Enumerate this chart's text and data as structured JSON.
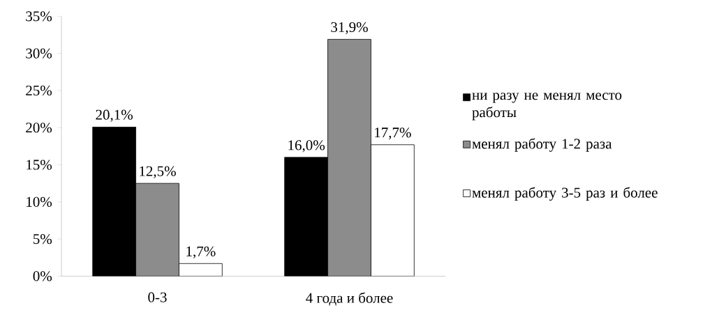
{
  "chart_data": {
    "type": "bar",
    "categories": [
      "0-3",
      "4 года и более"
    ],
    "series": [
      {
        "name": "ни разу не менял место работы",
        "color": "#000000",
        "values": [
          20.1,
          16.0
        ],
        "value_labels": [
          "20,1%",
          "16,0%"
        ]
      },
      {
        "name": "менял работу 1-2 раза",
        "color": "#8c8c8c",
        "values": [
          12.5,
          31.9
        ],
        "value_labels": [
          "12,5%",
          "31,9%"
        ]
      },
      {
        "name": "менял работу 3-5 раз и более",
        "color": "#ffffff",
        "values": [
          1.7,
          17.7
        ],
        "value_labels": [
          "1,7%",
          "17,7%"
        ]
      }
    ],
    "ylim": [
      0,
      35
    ],
    "yticks": [
      {
        "value": 0,
        "label": "0%"
      },
      {
        "value": 5,
        "label": "5%"
      },
      {
        "value": 10,
        "label": "10%"
      },
      {
        "value": 15,
        "label": "15%"
      },
      {
        "value": 20,
        "label": "20%"
      },
      {
        "value": 25,
        "label": "25%"
      },
      {
        "value": 30,
        "label": "30%"
      },
      {
        "value": 35,
        "label": "35%"
      }
    ],
    "legend": "right",
    "grid": false
  }
}
